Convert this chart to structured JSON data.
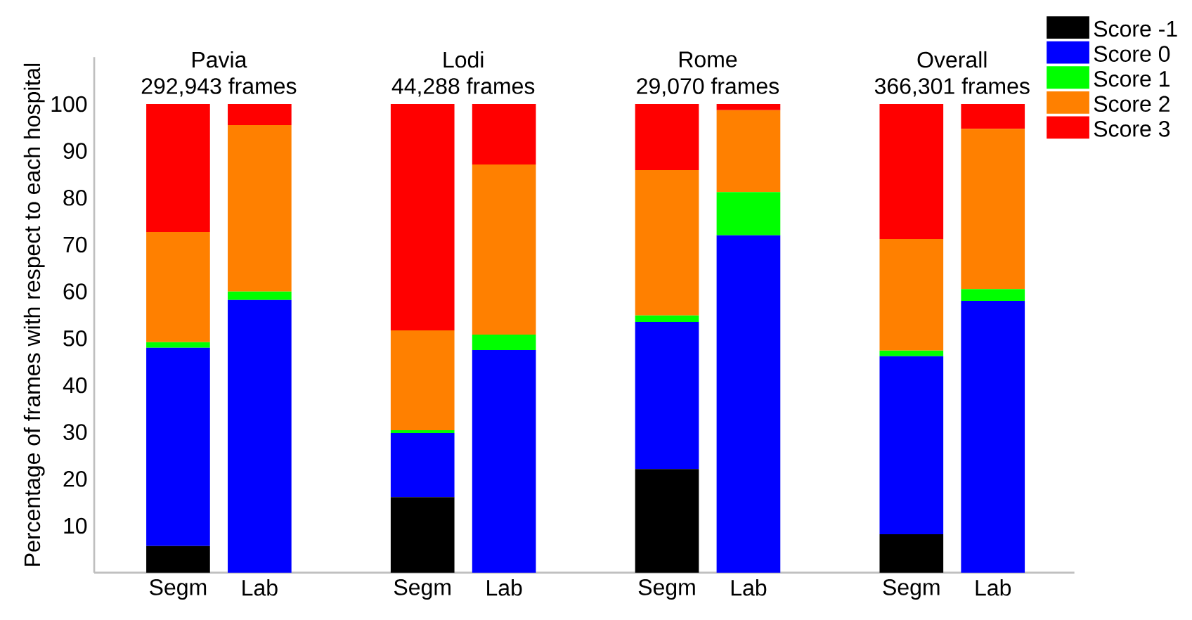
{
  "chart_data": {
    "type": "bar",
    "stacked": true,
    "ylabel": "Percentage of frames with respect to each hospital",
    "categories": [
      "Segm",
      "Lab",
      "Segm",
      "Lab",
      "Segm",
      "Lab",
      "Segm",
      "Lab"
    ],
    "series": [
      {
        "name": "Score -1",
        "color": "#000000",
        "values": [
          5.7,
          0,
          16.1,
          0,
          22.1,
          0,
          8.2,
          0
        ]
      },
      {
        "name": "Score 0",
        "color": "#0000ff",
        "values": [
          42.3,
          58.2,
          13.7,
          47.5,
          31.4,
          72.0,
          38.0,
          58.0
        ]
      },
      {
        "name": "Score 1",
        "color": "#00ff00",
        "values": [
          1.2,
          1.8,
          0.6,
          3.3,
          1.4,
          9.2,
          1.2,
          2.5
        ]
      },
      {
        "name": "Score 2",
        "color": "#ff8000",
        "values": [
          23.5,
          35.5,
          21.3,
          36.3,
          31.0,
          17.5,
          23.8,
          34.2
        ]
      },
      {
        "name": "Score 3",
        "color": "#ff0000",
        "values": [
          27.3,
          4.5,
          48.3,
          12.9,
          14.1,
          1.3,
          28.8,
          5.3
        ]
      }
    ],
    "annotations": [
      "Pavia",
      "292,943 frames",
      "Lodi",
      "44,288 frames",
      "Rome",
      "29,070 frames",
      "Overall",
      "366,301 frames"
    ],
    "ylim": [
      0,
      110
    ],
    "yticks": [
      10,
      20,
      30,
      40,
      50,
      60,
      70,
      80,
      90,
      100
    ],
    "grid": false,
    "legend": "top right"
  }
}
